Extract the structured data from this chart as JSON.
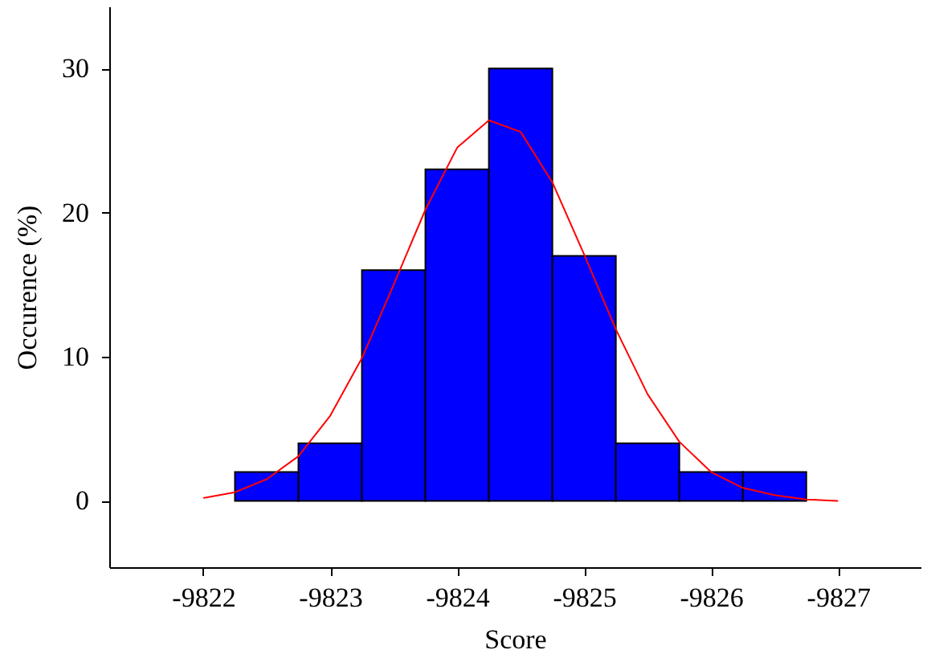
{
  "chart_data": {
    "type": "histogram",
    "xlabel": "Score",
    "ylabel": "Occurence (%)",
    "bins": [
      -9822.25,
      -9822.75,
      -9823.25,
      -9823.75,
      -9824.25,
      -9824.75,
      -9825.25,
      -9825.75,
      -9826.25,
      -9826.75
    ],
    "series": [
      {
        "color": "#0000ff",
        "values": [
          2,
          4,
          16,
          23,
          30,
          17,
          4,
          2,
          2
        ]
      },
      {
        "type": "line",
        "color": "#ff0000",
        "x": [
          -9822.0,
          -9822.25,
          -9822.5,
          -9822.75,
          -9823.0,
          -9823.25,
          -9823.5,
          -9823.75,
          -9824.0,
          -9824.25,
          -9824.5,
          -9824.75,
          -9825.0,
          -9825.25,
          -9825.5,
          -9825.75,
          -9826.0,
          -9826.25,
          -9826.5,
          -9826.75,
          -9827.0
        ],
        "values": [
          0.2,
          0.6,
          1.5,
          3.1,
          5.9,
          9.9,
          15.0,
          20.2,
          24.5,
          26.4,
          25.6,
          22.1,
          17.1,
          11.9,
          7.4,
          4.1,
          2.0,
          0.9,
          0.4,
          0.1,
          0.0
        ]
      }
    ],
    "xlim": [
      -9821.26,
      -9827.65
    ],
    "xticks": [
      -9822,
      -9823,
      -9824,
      -9825,
      -9826,
      -9827
    ],
    "ylim": [
      -4.6,
      34.3
    ],
    "yticks": [
      0,
      10,
      20,
      30
    ],
    "grid": false,
    "marker": "none",
    "line_style": "solid"
  }
}
